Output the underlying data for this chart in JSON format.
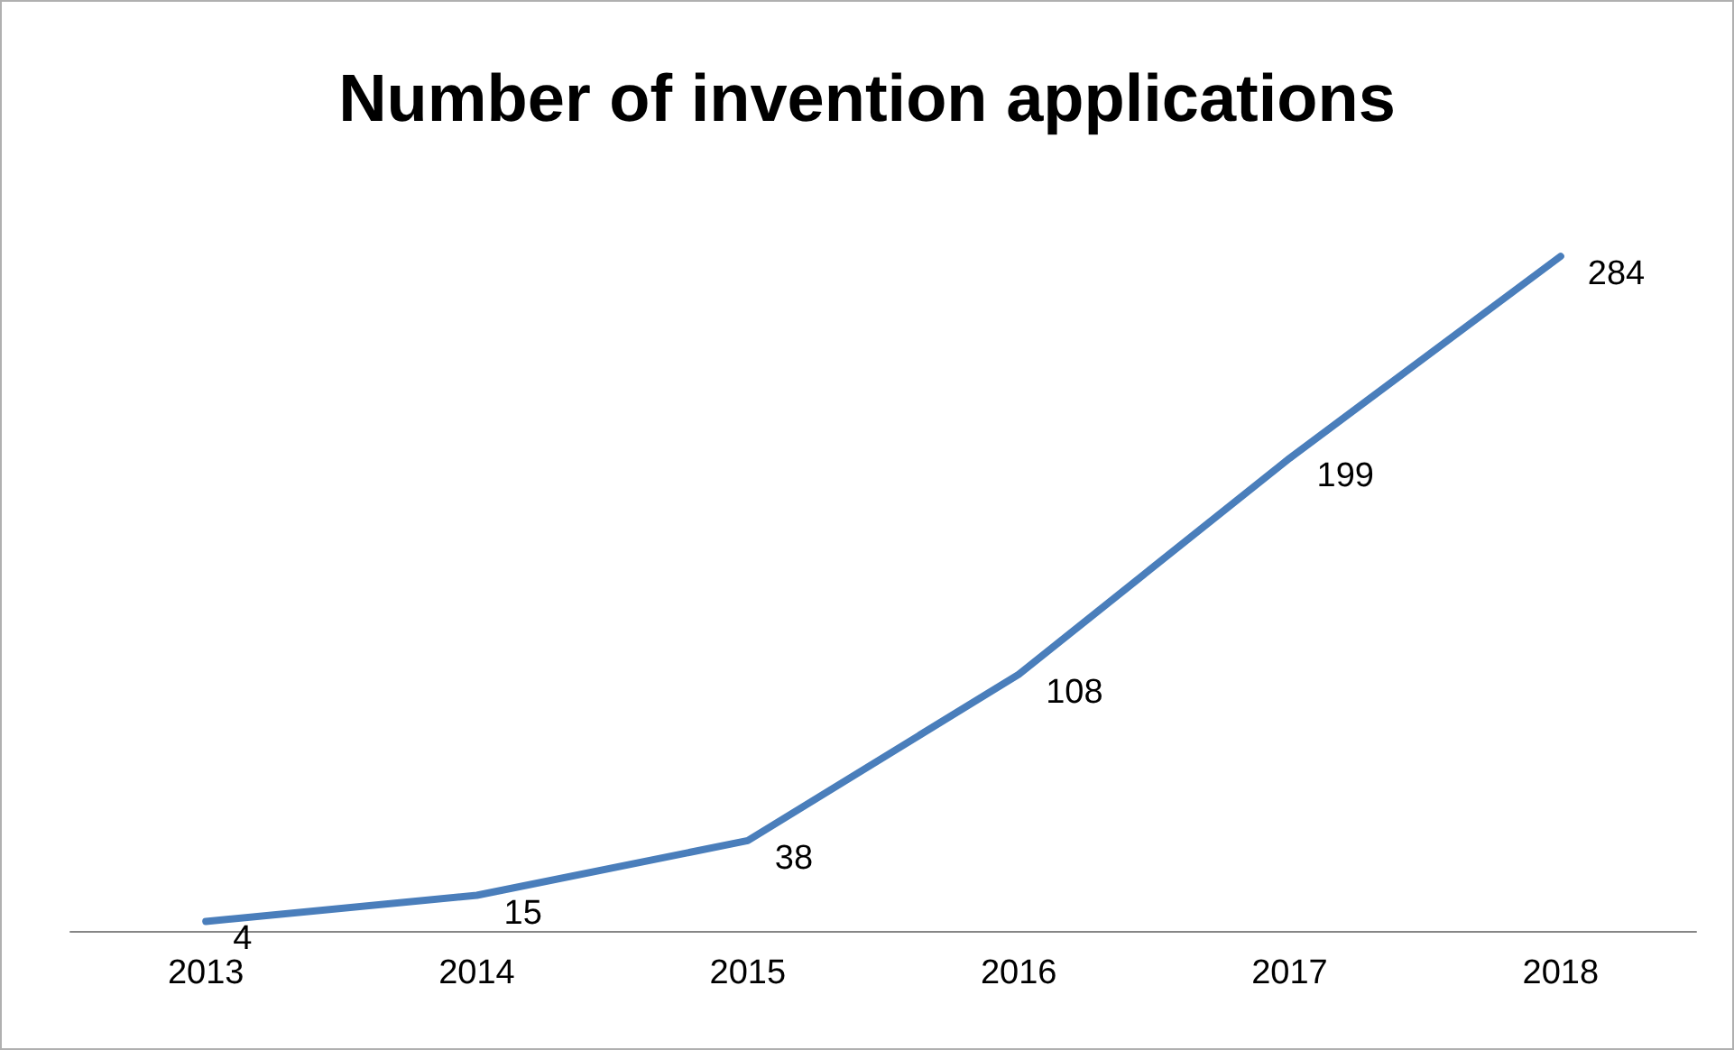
{
  "chart_data": {
    "type": "line",
    "title": "Number of invention applications",
    "categories": [
      "2013",
      "2014",
      "2015",
      "2016",
      "2017",
      "2018"
    ],
    "series": [
      {
        "color": "#4a7ebb",
        "values": [
          4,
          15,
          38,
          108,
          199,
          284
        ]
      }
    ],
    "data_labels": true,
    "grid": false,
    "marker": "none",
    "line_style": "solid",
    "tick_labels": "x"
  }
}
